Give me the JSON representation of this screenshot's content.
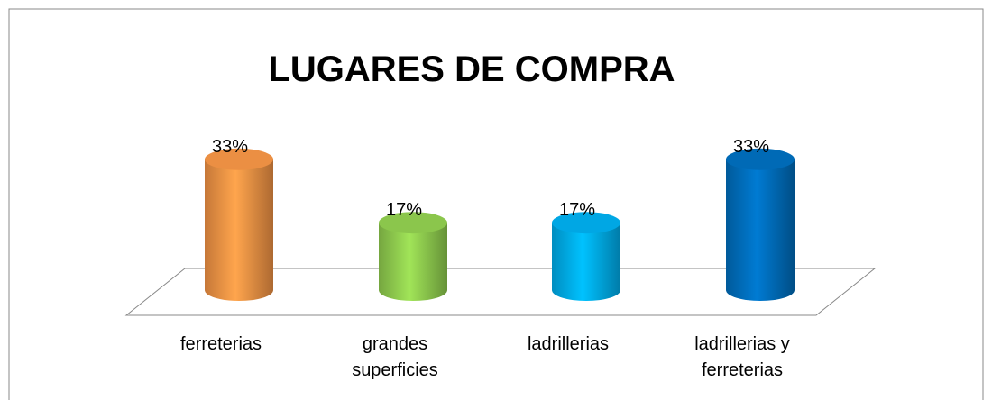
{
  "chart_data": {
    "type": "bar",
    "title": "LUGARES DE COMPRA",
    "categories": [
      "ferreterias",
      "grandes superficies",
      "ladrillerias",
      "ladrillerias y ferreterias"
    ],
    "values": [
      33,
      17,
      17,
      33
    ],
    "value_labels": [
      "33%",
      "17%",
      "17%",
      "33%"
    ],
    "colors": [
      "#f79646",
      "#92d050",
      "#00b0f0",
      "#0070c0"
    ]
  }
}
